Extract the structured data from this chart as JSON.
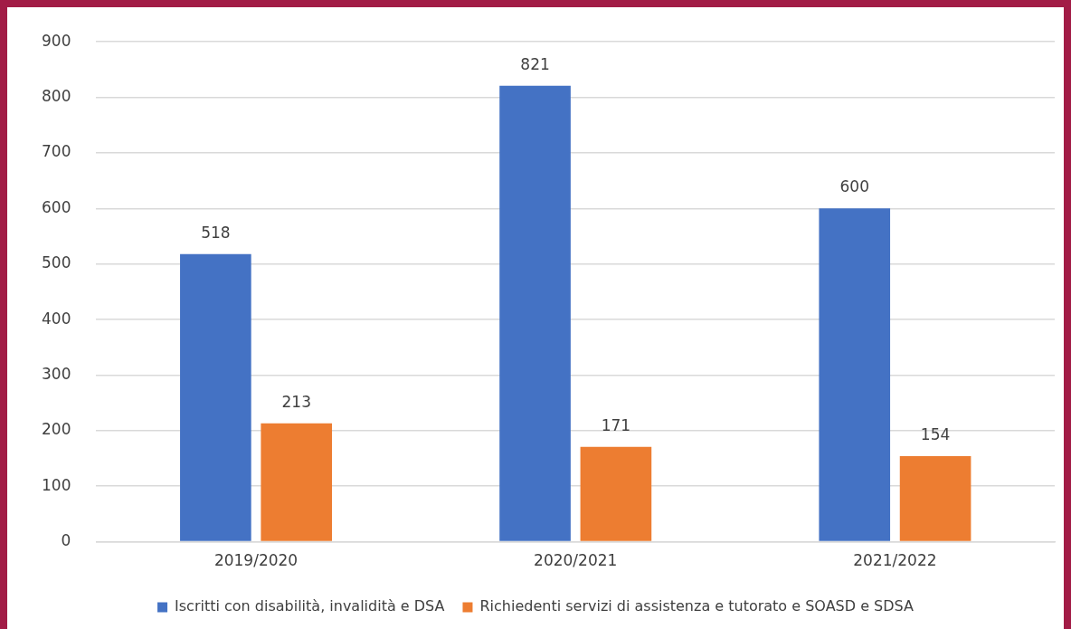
{
  "chart_data": {
    "type": "bar",
    "categories": [
      "2019/2020",
      "2020/2021",
      "2021/2022"
    ],
    "series": [
      {
        "name": "Iscritti con disabilità, invalidità e DSA",
        "color": "#4472c4",
        "values": [
          518,
          821,
          600
        ]
      },
      {
        "name": "Richiedenti servizi di assistenza e tutorato e SOASD e SDSA",
        "color": "#ed7d31",
        "values": [
          213,
          171,
          154
        ]
      }
    ],
    "ylim": [
      0,
      900
    ],
    "yticks": [
      0,
      100,
      200,
      300,
      400,
      500,
      600,
      700,
      800,
      900
    ],
    "grid": "y",
    "legend": "bottom",
    "data_labels": true
  }
}
